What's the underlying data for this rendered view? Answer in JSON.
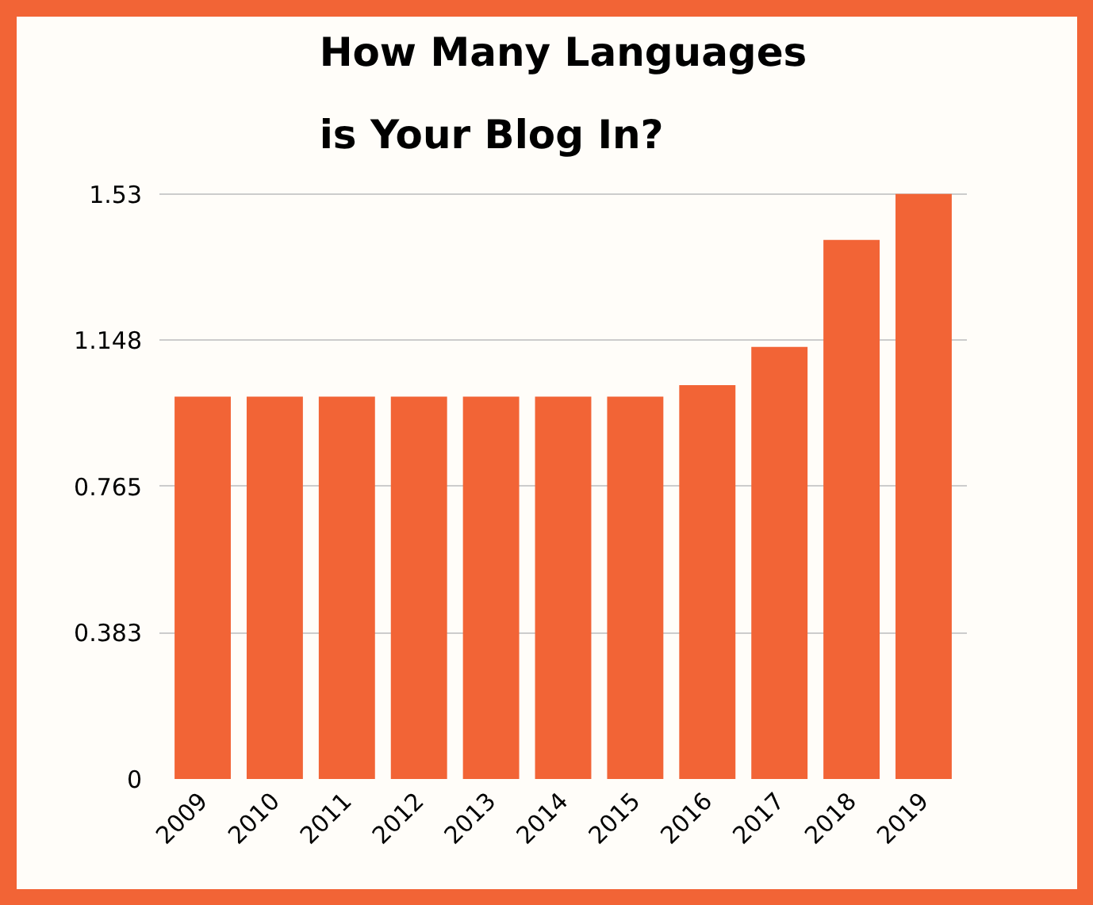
{
  "chart_data": {
    "type": "bar",
    "title": "How Many Languages\nis Your Blog In?",
    "categories": [
      "2009",
      "2010",
      "2011",
      "2012",
      "2013",
      "2014",
      "2015",
      "2016",
      "2017",
      "2018",
      "2019"
    ],
    "values": [
      1.0,
      1.0,
      1.0,
      1.0,
      1.0,
      1.0,
      1.0,
      1.03,
      1.13,
      1.41,
      1.53
    ],
    "color": "#f26436",
    "ylim": [
      0,
      1.6
    ],
    "yticks": [
      0,
      0.383,
      0.765,
      1.148,
      1.53
    ],
    "grid": "y"
  }
}
